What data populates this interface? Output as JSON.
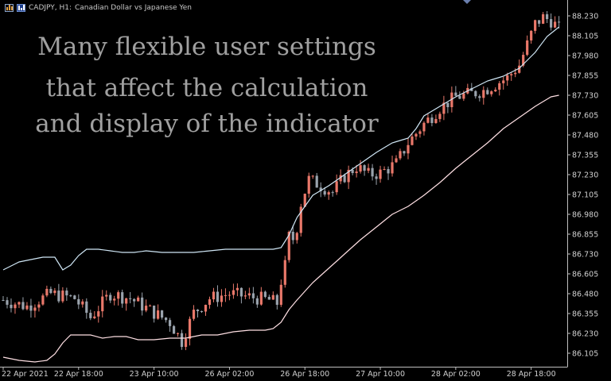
{
  "header": {
    "symbol": "CADJPY, H1:",
    "description": "Canadian Dollar vs Japanese Yen"
  },
  "overlay": {
    "lines": [
      "Many flexible user settings",
      "that affect the calculation",
      "and display of the indicator"
    ]
  },
  "colors": {
    "background": "#000000",
    "axis_text": "#d0d0d0",
    "bull_candle": "#e9786a",
    "bear_candle": "#9aa3ad",
    "upper_band": "#cfe6f5",
    "lower_band": "#ffe0e4",
    "overlay_text": "#a0a0a0"
  },
  "chart_data": {
    "type": "candlestick",
    "title": "CADJPY, H1:  Canadian Dollar vs Japanese Yen",
    "ylim": [
      86.04,
      88.29
    ],
    "y_ticks": [
      "88.230",
      "88.105",
      "87.980",
      "87.855",
      "87.730",
      "87.605",
      "87.480",
      "87.355",
      "87.230",
      "87.105",
      "86.980",
      "86.855",
      "86.730",
      "86.605",
      "86.480",
      "86.355",
      "86.230",
      "86.105"
    ],
    "x_ticks": [
      "22 Apr 2021",
      "22 Apr 18:00",
      "23 Apr 10:00",
      "26 Apr 02:00",
      "26 Apr 18:00",
      "27 Apr 10:00",
      "28 Apr 02:00",
      "28 Apr 18:00"
    ],
    "x_tick_positions": [
      0,
      19,
      38,
      57,
      76,
      95,
      114,
      133
    ],
    "candle_count": 141,
    "price_path": [
      [
        0,
        86.44
      ],
      [
        6,
        86.4
      ],
      [
        12,
        86.48
      ],
      [
        18,
        86.45
      ],
      [
        22,
        86.33
      ],
      [
        27,
        86.48
      ],
      [
        32,
        86.45
      ],
      [
        38,
        86.36
      ],
      [
        42,
        86.3
      ],
      [
        45,
        86.18
      ],
      [
        48,
        86.36
      ],
      [
        52,
        86.45
      ],
      [
        57,
        86.48
      ],
      [
        62,
        86.46
      ],
      [
        67,
        86.44
      ],
      [
        69,
        86.42
      ],
      [
        70,
        86.56
      ],
      [
        72,
        86.75
      ],
      [
        74,
        86.9
      ],
      [
        75,
        87.05
      ],
      [
        77,
        87.2
      ],
      [
        80,
        87.16
      ],
      [
        83,
        87.12
      ],
      [
        86,
        87.22
      ],
      [
        89,
        87.28
      ],
      [
        92,
        87.23
      ],
      [
        95,
        87.24
      ],
      [
        99,
        87.3
      ],
      [
        102,
        87.43
      ],
      [
        106,
        87.55
      ],
      [
        110,
        87.65
      ],
      [
        114,
        87.72
      ],
      [
        118,
        87.74
      ],
      [
        121,
        87.76
      ],
      [
        124,
        87.8
      ],
      [
        127,
        87.84
      ],
      [
        130,
        87.92
      ],
      [
        132,
        88.05
      ],
      [
        134,
        88.18
      ],
      [
        136,
        88.22
      ],
      [
        138,
        88.2
      ],
      [
        140,
        88.15
      ]
    ],
    "upper_band": [
      [
        0,
        86.63
      ],
      [
        4,
        86.68
      ],
      [
        8,
        86.7
      ],
      [
        10,
        86.71
      ],
      [
        13,
        86.71
      ],
      [
        15,
        86.63
      ],
      [
        17,
        86.66
      ],
      [
        19,
        86.72
      ],
      [
        21,
        86.76
      ],
      [
        24,
        86.76
      ],
      [
        27,
        86.75
      ],
      [
        30,
        86.74
      ],
      [
        33,
        86.74
      ],
      [
        36,
        86.75
      ],
      [
        40,
        86.74
      ],
      [
        44,
        86.74
      ],
      [
        48,
        86.74
      ],
      [
        52,
        86.75
      ],
      [
        56,
        86.76
      ],
      [
        60,
        86.76
      ],
      [
        64,
        86.76
      ],
      [
        68,
        86.76
      ],
      [
        70,
        86.77
      ],
      [
        72,
        86.85
      ],
      [
        74,
        86.96
      ],
      [
        76,
        87.03
      ],
      [
        78,
        87.1
      ],
      [
        82,
        87.16
      ],
      [
        86,
        87.23
      ],
      [
        90,
        87.3
      ],
      [
        94,
        87.37
      ],
      [
        98,
        87.43
      ],
      [
        102,
        87.46
      ],
      [
        104,
        87.52
      ],
      [
        106,
        87.6
      ],
      [
        110,
        87.66
      ],
      [
        114,
        87.72
      ],
      [
        118,
        87.77
      ],
      [
        122,
        87.82
      ],
      [
        126,
        87.85
      ],
      [
        130,
        87.9
      ],
      [
        134,
        88.0
      ],
      [
        137,
        88.1
      ],
      [
        140,
        88.16
      ]
    ],
    "lower_band": [
      [
        0,
        86.08
      ],
      [
        4,
        86.06
      ],
      [
        8,
        86.05
      ],
      [
        11,
        86.06
      ],
      [
        13,
        86.1
      ],
      [
        15,
        86.17
      ],
      [
        17,
        86.22
      ],
      [
        19,
        86.22
      ],
      [
        22,
        86.22
      ],
      [
        25,
        86.2
      ],
      [
        28,
        86.21
      ],
      [
        31,
        86.21
      ],
      [
        34,
        86.19
      ],
      [
        38,
        86.19
      ],
      [
        42,
        86.2
      ],
      [
        46,
        86.2
      ],
      [
        50,
        86.22
      ],
      [
        54,
        86.22
      ],
      [
        58,
        86.24
      ],
      [
        62,
        86.25
      ],
      [
        66,
        86.25
      ],
      [
        68,
        86.26
      ],
      [
        70,
        86.3
      ],
      [
        72,
        86.38
      ],
      [
        74,
        86.44
      ],
      [
        78,
        86.55
      ],
      [
        82,
        86.64
      ],
      [
        86,
        86.73
      ],
      [
        90,
        86.82
      ],
      [
        94,
        86.9
      ],
      [
        98,
        86.98
      ],
      [
        102,
        87.03
      ],
      [
        106,
        87.1
      ],
      [
        110,
        87.18
      ],
      [
        114,
        87.27
      ],
      [
        118,
        87.35
      ],
      [
        122,
        87.43
      ],
      [
        126,
        87.52
      ],
      [
        130,
        87.59
      ],
      [
        134,
        87.66
      ],
      [
        138,
        87.72
      ],
      [
        140,
        87.73
      ]
    ]
  }
}
